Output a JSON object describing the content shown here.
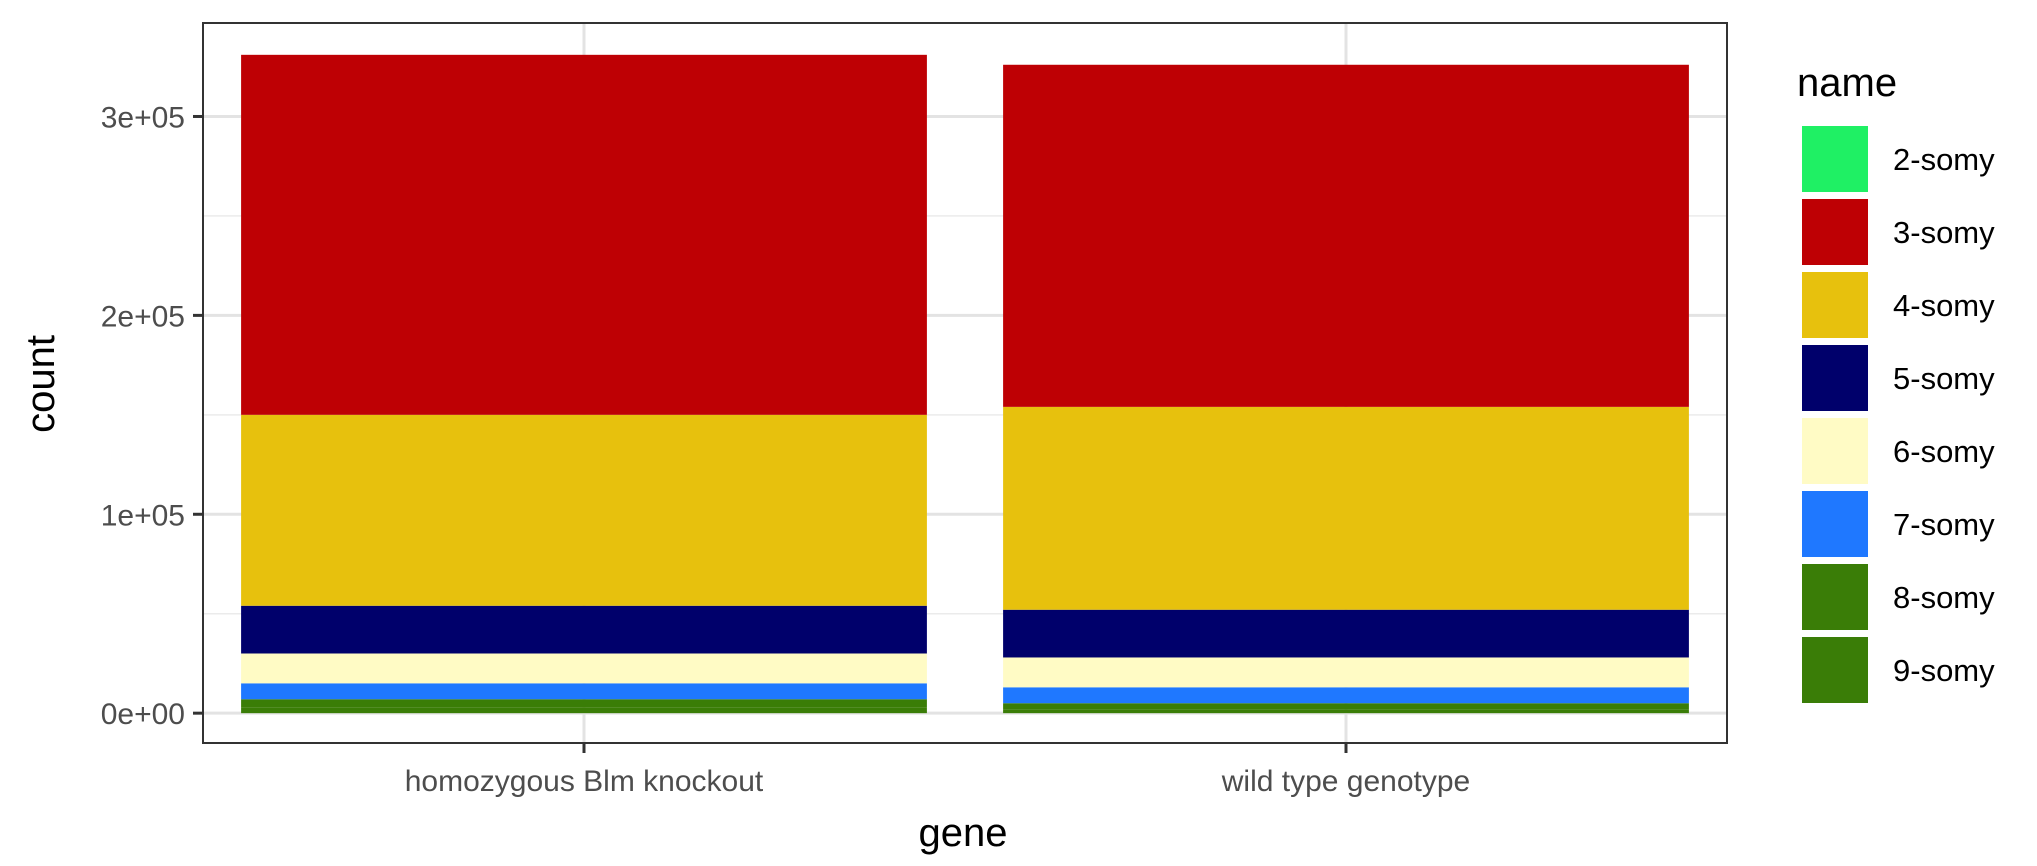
{
  "chart_data": {
    "type": "bar",
    "stacked": true,
    "categories": [
      "homozygous Blm knockout",
      "wild type genotype"
    ],
    "xlabel": "gene",
    "ylabel": "count",
    "ylim": [
      -15000,
      347000
    ],
    "yticks": [
      0,
      100000,
      200000,
      300000
    ],
    "ytick_labels": [
      "0e+00",
      "1e+05",
      "2e+05",
      "3e+05"
    ],
    "grid": true,
    "legend": {
      "title": "name",
      "position": "right"
    },
    "series": [
      {
        "name": "9-somy",
        "color": "#3A7D07",
        "values": [
          3000,
          2000
        ]
      },
      {
        "name": "8-somy",
        "color": "#3A7D07",
        "values": [
          4000,
          3000
        ]
      },
      {
        "name": "7-somy",
        "color": "#1F78FF",
        "values": [
          8000,
          8000
        ]
      },
      {
        "name": "6-somy",
        "color": "#FFFBC5",
        "values": [
          15000,
          15000
        ]
      },
      {
        "name": "5-somy",
        "color": "#00006B",
        "values": [
          24000,
          24000
        ]
      },
      {
        "name": "4-somy",
        "color": "#E7C10D",
        "values": [
          96000,
          102000
        ]
      },
      {
        "name": "3-somy",
        "color": "#BE0004",
        "values": [
          181000,
          172000
        ]
      },
      {
        "name": "2-somy",
        "color": "#1FF064",
        "values": [
          0,
          0
        ]
      }
    ],
    "legend_order": [
      "2-somy",
      "3-somy",
      "4-somy",
      "5-somy",
      "6-somy",
      "7-somy",
      "8-somy",
      "9-somy"
    ]
  }
}
